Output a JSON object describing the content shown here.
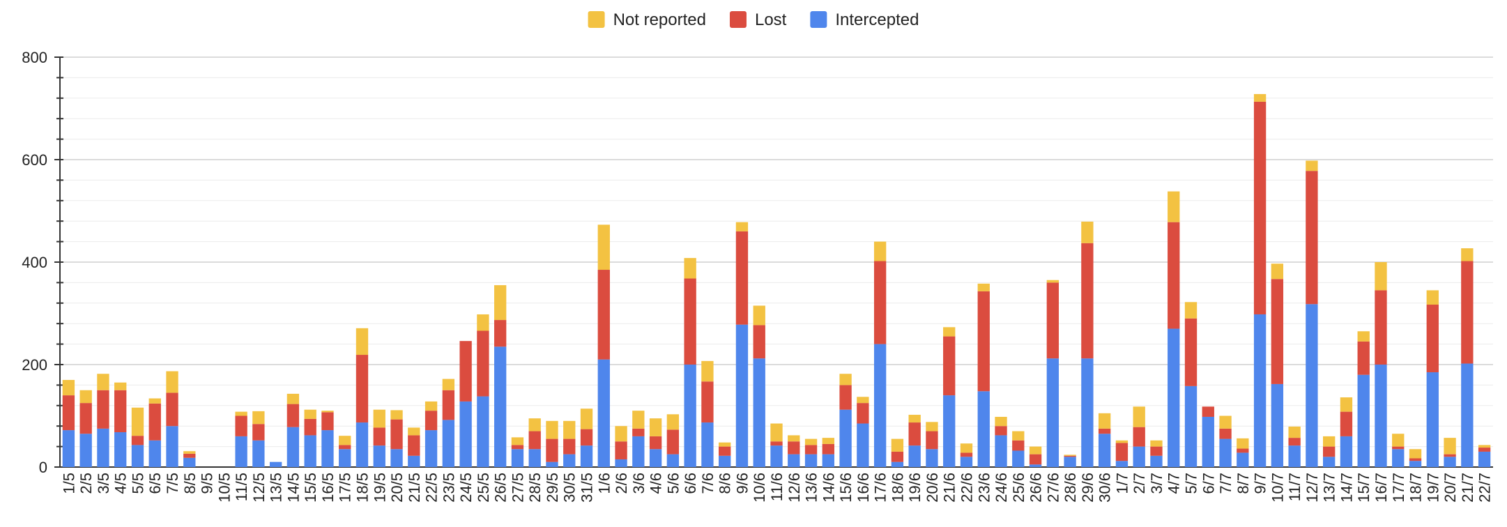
{
  "chart_data": {
    "type": "bar",
    "stacked": true,
    "title": "",
    "xlabel": "",
    "ylabel": "",
    "ylim": [
      0,
      800
    ],
    "yticks": [
      0,
      200,
      400,
      600,
      800
    ],
    "grid": true,
    "legend_position": "top-center",
    "categories": [
      "1/5",
      "2/5",
      "3/5",
      "4/5",
      "5/5",
      "6/5",
      "7/5",
      "8/5",
      "9/5",
      "10/5",
      "11/5",
      "12/5",
      "13/5",
      "14/5",
      "15/5",
      "16/5",
      "17/5",
      "18/5",
      "19/5",
      "20/5",
      "21/5",
      "22/5",
      "23/5",
      "24/5",
      "25/5",
      "26/5",
      "27/5",
      "28/5",
      "29/5",
      "30/5",
      "31/5",
      "1/6",
      "2/6",
      "3/6",
      "4/6",
      "5/6",
      "6/6",
      "7/6",
      "8/6",
      "9/6",
      "10/6",
      "11/6",
      "12/6",
      "13/6",
      "14/6",
      "15/6",
      "16/6",
      "17/6",
      "18/6",
      "19/6",
      "20/6",
      "21/6",
      "22/6",
      "23/6",
      "24/6",
      "25/6",
      "26/6",
      "27/6",
      "28/6",
      "29/6",
      "30/6",
      "1/7",
      "2/7",
      "3/7",
      "4/7",
      "5/7",
      "6/7",
      "7/7",
      "8/7",
      "9/7",
      "10/7",
      "11/7",
      "12/7",
      "13/7",
      "14/7",
      "15/7",
      "16/7",
      "17/7",
      "18/7",
      "19/7",
      "20/7",
      "21/7",
      "22/7"
    ],
    "series": [
      {
        "name": "Intercepted",
        "color": "#4f86ec",
        "values": [
          72,
          65,
          75,
          68,
          43,
          52,
          80,
          18,
          0,
          0,
          60,
          52,
          10,
          78,
          62,
          72,
          35,
          87,
          42,
          35,
          22,
          72,
          92,
          128,
          138,
          235,
          35,
          35,
          10,
          25,
          42,
          210,
          15,
          60,
          35,
          25,
          200,
          87,
          22,
          278,
          212,
          42,
          25,
          25,
          25,
          112,
          85,
          240,
          10,
          42,
          35,
          140,
          20,
          148,
          62,
          32,
          5,
          212,
          20,
          212,
          65,
          12,
          40,
          22,
          270,
          158,
          98,
          55,
          28,
          298,
          162,
          42,
          318,
          20,
          60,
          180,
          200,
          35,
          12,
          185,
          20,
          202,
          30
        ]
      },
      {
        "name": "Lost",
        "color": "#db4c3f",
        "values": [
          68,
          60,
          75,
          82,
          18,
          72,
          65,
          8,
          0,
          0,
          40,
          32,
          0,
          45,
          32,
          35,
          8,
          132,
          35,
          58,
          40,
          38,
          58,
          118,
          128,
          52,
          8,
          35,
          45,
          30,
          32,
          175,
          35,
          15,
          25,
          48,
          168,
          80,
          18,
          182,
          65,
          8,
          25,
          18,
          20,
          48,
          40,
          162,
          20,
          45,
          35,
          115,
          8,
          195,
          18,
          20,
          20,
          148,
          2,
          225,
          10,
          35,
          38,
          18,
          208,
          132,
          20,
          20,
          8,
          415,
          205,
          15,
          260,
          20,
          48,
          65,
          145,
          5,
          5,
          132,
          5,
          200,
          8
        ]
      },
      {
        "name": "Not reported",
        "color": "#f3c242",
        "values": [
          30,
          25,
          32,
          15,
          55,
          10,
          42,
          5,
          0,
          0,
          8,
          25,
          0,
          20,
          18,
          3,
          18,
          52,
          35,
          18,
          15,
          18,
          22,
          0,
          32,
          68,
          15,
          25,
          35,
          35,
          40,
          88,
          30,
          35,
          35,
          30,
          40,
          40,
          8,
          18,
          38,
          35,
          12,
          12,
          12,
          22,
          12,
          38,
          25,
          15,
          18,
          18,
          18,
          15,
          18,
          18,
          15,
          5,
          2,
          42,
          30,
          5,
          40,
          12,
          60,
          32,
          0,
          25,
          20,
          15,
          30,
          22,
          20,
          20,
          28,
          20,
          55,
          25,
          18,
          28,
          32,
          25,
          5
        ]
      }
    ]
  }
}
